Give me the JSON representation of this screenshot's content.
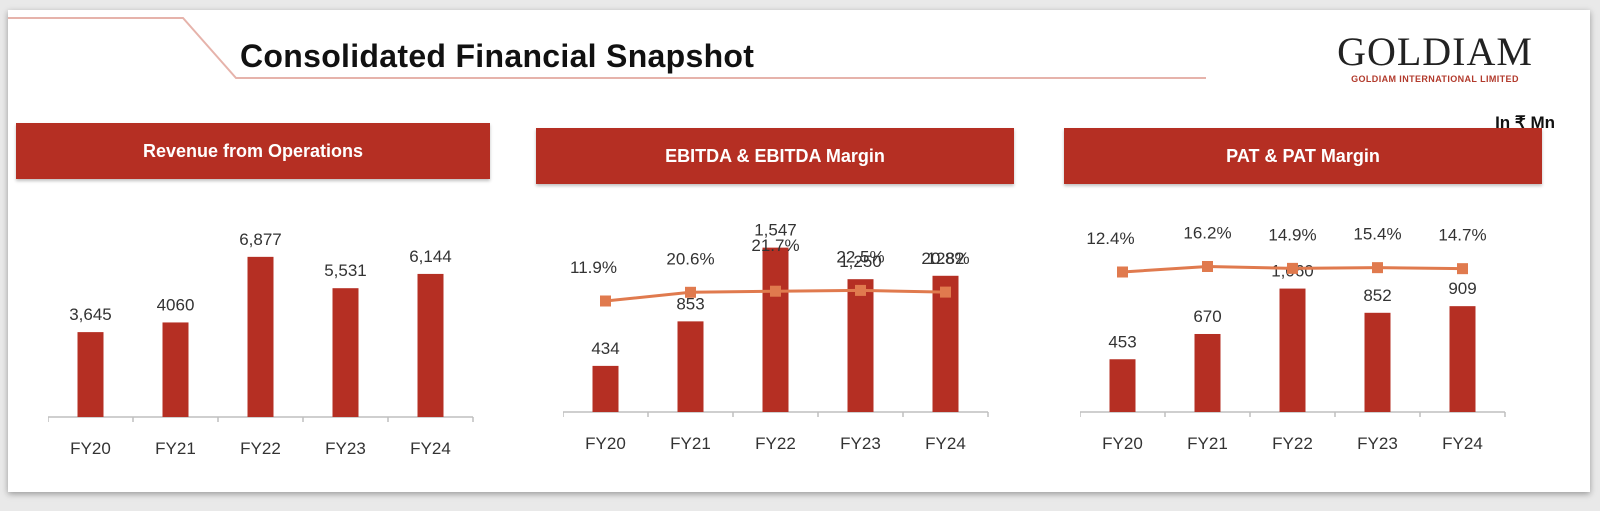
{
  "header": {
    "title": "Consolidated Financial Snapshot",
    "unit": "In ₹ Mn"
  },
  "logo": {
    "wordmark": "GOLDIAM",
    "subtitle": "GOLDIAM INTERNATIONAL LIMITED"
  },
  "colors": {
    "bar": "#b52f23",
    "line": "#e07a4e",
    "marker": "#e07a4e",
    "axis": "#bfbfbf",
    "text": "#333333"
  },
  "chart_data": [
    {
      "type": "bar",
      "title": "Revenue from Operations",
      "categories": [
        "FY20",
        "FY21",
        "FY22",
        "FY23",
        "FY24"
      ],
      "values": [
        3645,
        4060,
        6877,
        5531,
        6144
      ],
      "value_labels": [
        "3,645",
        "4060",
        "6,877",
        "5,531",
        "6,144"
      ],
      "ylim": [
        0,
        7300
      ]
    },
    {
      "type": "bar+line",
      "title": "EBITDA & EBITDA Margin",
      "categories": [
        "FY20",
        "FY21",
        "FY22",
        "FY23",
        "FY24"
      ],
      "values": [
        434,
        853,
        1547,
        1250,
        1282
      ],
      "value_labels": [
        "434",
        "853",
        "1,547",
        "1,250",
        "1282"
      ],
      "margins": [
        11.9,
        20.6,
        21.7,
        22.5,
        20.8
      ],
      "margin_labels": [
        "11.9%",
        "20.6%",
        "21.7%",
        "22.5%",
        "20.8%"
      ],
      "ylim": [
        0,
        1600
      ]
    },
    {
      "type": "bar+line",
      "title": "PAT & PAT Margin",
      "categories": [
        "FY20",
        "FY21",
        "FY22",
        "FY23",
        "FY24"
      ],
      "values": [
        453,
        670,
        1060,
        852,
        909
      ],
      "value_labels": [
        "453",
        "670",
        "1,060",
        "852",
        "909"
      ],
      "margins": [
        12.4,
        16.2,
        14.9,
        15.4,
        14.7
      ],
      "margin_labels": [
        "12.4%",
        "16.2%",
        "14.9%",
        "15.4%",
        "14.7%"
      ],
      "ylim": [
        0,
        1460
      ]
    }
  ]
}
